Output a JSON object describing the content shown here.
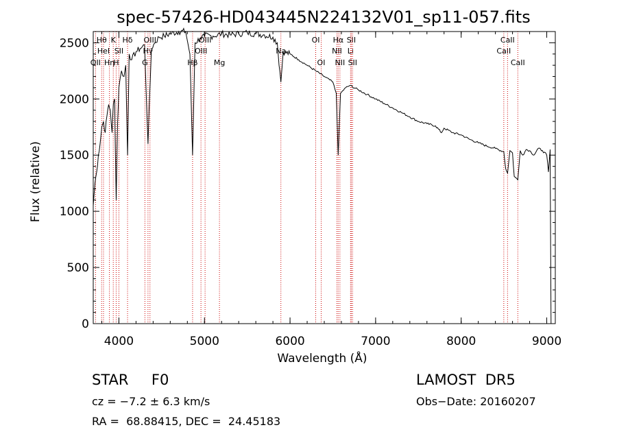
{
  "chart_data": {
    "type": "line",
    "title": "spec-57426-HD043445N224132V01_sp11-057.fits",
    "xlabel": "Wavelength (Å)",
    "ylabel": "Flux (relative)",
    "xlim": [
      3700,
      9100
    ],
    "ylim": [
      0,
      2600
    ],
    "xticks": [
      4000,
      5000,
      6000,
      7000,
      8000,
      9000
    ],
    "xtick_labels": [
      "4000",
      "5000",
      "6000",
      "7000",
      "8000",
      "9000"
    ],
    "yticks": [
      0,
      500,
      1000,
      1500,
      2000,
      2500
    ],
    "ytick_labels": [
      "0",
      "500",
      "1000",
      "1500",
      "2000",
      "2500"
    ],
    "grid": false,
    "series": [
      {
        "x": [
          3700,
          3720,
          3740,
          3760,
          3780,
          3800,
          3820,
          3840,
          3860,
          3880,
          3900,
          3920,
          3935,
          3950,
          3968,
          3985,
          4000,
          4030,
          4060,
          4080,
          4101,
          4120,
          4150,
          4200,
          4250,
          4300,
          4340,
          4380,
          4420,
          4470,
          4530,
          4600,
          4700,
          4780,
          4830,
          4861,
          4890,
          4950,
          5000,
          5100,
          5200,
          5300,
          5400,
          5500,
          5600,
          5700,
          5800,
          5850,
          5893,
          5920,
          6000,
          6100,
          6200,
          6300,
          6400,
          6500,
          6540,
          6563,
          6590,
          6650,
          6700,
          6800,
          6900,
          7000,
          7100,
          7200,
          7300,
          7400,
          7500,
          7600,
          7700,
          7770,
          7800,
          7900,
          8000,
          8100,
          8200,
          8300,
          8400,
          8498,
          8520,
          8542,
          8570,
          8600,
          8620,
          8662,
          8690,
          8720,
          8760,
          8800,
          8850,
          8900,
          8950,
          9000,
          9020,
          9040,
          9050
        ],
        "y": [
          1050,
          1250,
          1350,
          1500,
          1600,
          1750,
          1800,
          1700,
          1850,
          1950,
          1900,
          1700,
          1950,
          2000,
          1100,
          1800,
          2100,
          2250,
          2200,
          2300,
          1500,
          2400,
          2350,
          2420,
          2450,
          2480,
          1600,
          2450,
          2500,
          2550,
          2560,
          2580,
          2600,
          2600,
          2400,
          1500,
          2500,
          2540,
          2560,
          2560,
          2580,
          2570,
          2580,
          2590,
          2580,
          2570,
          2550,
          2500,
          2150,
          2420,
          2400,
          2350,
          2300,
          2250,
          2200,
          2150,
          2050,
          1500,
          2050,
          2100,
          2120,
          2080,
          2040,
          2000,
          1960,
          1920,
          1880,
          1840,
          1800,
          1780,
          1760,
          1700,
          1740,
          1700,
          1680,
          1640,
          1610,
          1580,
          1560,
          1530,
          1380,
          1340,
          1540,
          1520,
          1310,
          1280,
          1540,
          1500,
          1550,
          1540,
          1500,
          1560,
          1540,
          1500,
          1350,
          1550,
          0
        ]
      }
    ],
    "spectral_lines": [
      {
        "wavelength": 3727,
        "label": "OII",
        "row": 3
      },
      {
        "wavelength": 3798,
        "label": "Hθ",
        "row": 1
      },
      {
        "wavelength": 3820,
        "label": "HeI",
        "row": 2
      },
      {
        "wavelength": 3889,
        "label": "Hη",
        "row": 3
      },
      {
        "wavelength": 3934,
        "label": "K",
        "row": 1
      },
      {
        "wavelength": 3968,
        "label": "H",
        "row": 3
      },
      {
        "wavelength": 4000,
        "label": "SII",
        "row": 2
      },
      {
        "wavelength": 4101,
        "label": "Hδ",
        "row": 1
      },
      {
        "wavelength": 4304,
        "label": "G",
        "row": 3
      },
      {
        "wavelength": 4340,
        "label": "Hγ",
        "row": 2
      },
      {
        "wavelength": 4363,
        "label": "OIII",
        "row": 1
      },
      {
        "wavelength": 4861,
        "label": "Hβ",
        "row": 3
      },
      {
        "wavelength": 4959,
        "label": "OIII",
        "row": 2
      },
      {
        "wavelength": 5007,
        "label": "OIII",
        "row": 1
      },
      {
        "wavelength": 5175,
        "label": "Mg",
        "row": 3
      },
      {
        "wavelength": 5893,
        "label": "Na",
        "row": 2
      },
      {
        "wavelength": 6300,
        "label": "OI",
        "row": 1
      },
      {
        "wavelength": 6364,
        "label": "OI",
        "row": 3
      },
      {
        "wavelength": 6548,
        "label": "NII",
        "row": 2
      },
      {
        "wavelength": 6563,
        "label": "Hα",
        "row": 1
      },
      {
        "wavelength": 6583,
        "label": "NII",
        "row": 3
      },
      {
        "wavelength": 6707,
        "label": "Li",
        "row": 2
      },
      {
        "wavelength": 6716,
        "label": "SII",
        "row": 1
      },
      {
        "wavelength": 6731,
        "label": "SII",
        "row": 3
      },
      {
        "wavelength": 8498,
        "label": "CaII",
        "row": 2
      },
      {
        "wavelength": 8542,
        "label": "CaII",
        "row": 1
      },
      {
        "wavelength": 8662,
        "label": "CaII",
        "row": 3
      }
    ]
  },
  "info": {
    "object_type": "STAR     F0",
    "survey": "LAMOST  DR5",
    "cz": "cz = −7.2 ± 6.3 km/s",
    "obs_date": "Obs−Date: 20160207",
    "radec": "RA =  68.88415, DEC =  24.45183"
  },
  "colors": {
    "spectrum": "#000000",
    "line_markers": "#cc0000",
    "axes": "#000000"
  }
}
